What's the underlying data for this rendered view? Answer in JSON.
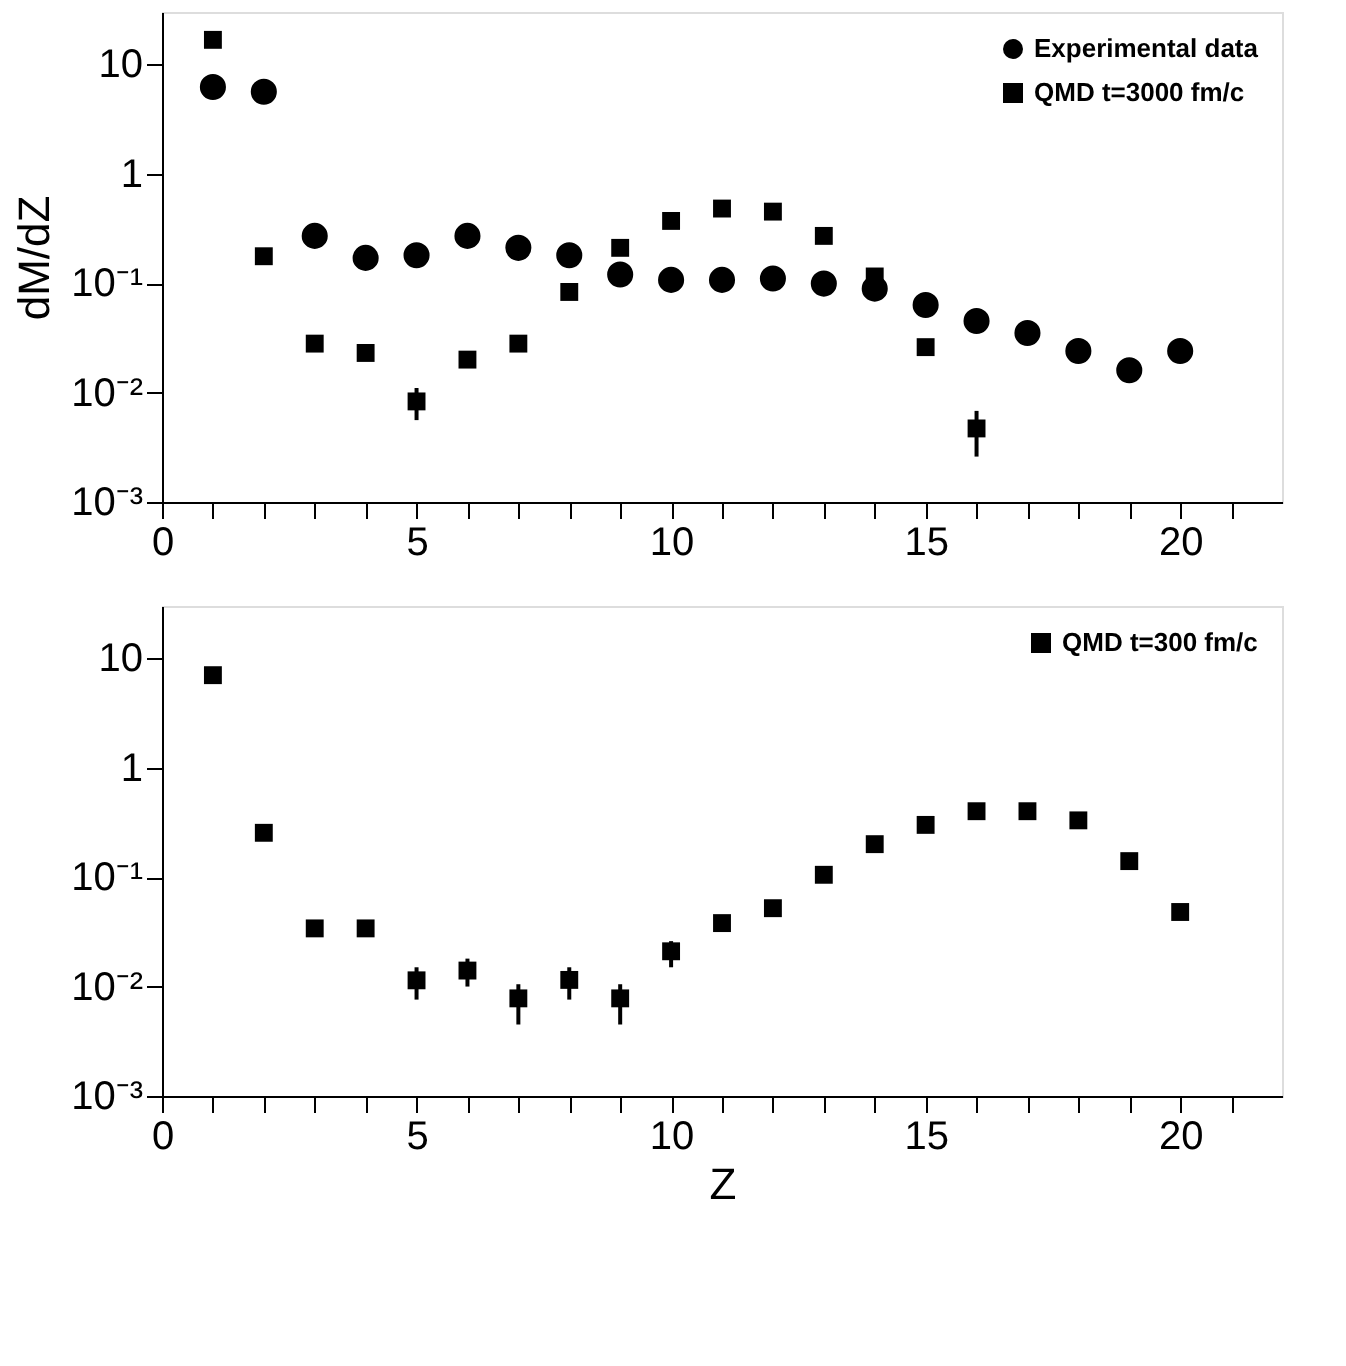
{
  "chart_data": [
    {
      "type": "scatter",
      "ylabel": "dM/dZ",
      "log": "y",
      "grid": false,
      "legend": "top right",
      "x": [
        1,
        2,
        3,
        4,
        5,
        6,
        7,
        8,
        9,
        10,
        11,
        12,
        13,
        14,
        15,
        16,
        17,
        18,
        19,
        20
      ],
      "xlim": [
        0,
        22
      ],
      "xticks": [
        0,
        {
          "value": 1,
          "label": null
        },
        {
          "value": 2,
          "label": null
        },
        {
          "value": 3,
          "label": null
        },
        {
          "value": 4,
          "label": null
        },
        5,
        {
          "value": 6,
          "label": null
        },
        {
          "value": 7,
          "label": null
        },
        {
          "value": 8,
          "label": null
        },
        {
          "value": 9,
          "label": null
        },
        10,
        {
          "value": 11,
          "label": null
        },
        {
          "value": 12,
          "label": null
        },
        {
          "value": 13,
          "label": null
        },
        {
          "value": 14,
          "label": null
        },
        15,
        {
          "value": 16,
          "label": null
        },
        {
          "value": 17,
          "label": null
        },
        {
          "value": 18,
          "label": null
        },
        {
          "value": 19,
          "label": null
        },
        20,
        {
          "value": 21,
          "label": null
        }
      ],
      "ylim": [
        0.001,
        30
      ],
      "yticks": [
        {
          "value": 0.001,
          "label": "10⁻³"
        },
        {
          "value": 0.01,
          "label": "10⁻²"
        },
        {
          "value": 0.1,
          "label": "10⁻¹"
        },
        1,
        10
      ],
      "series": [
        {
          "name": "Experimental data",
          "color": "#000000",
          "marker": "circle",
          "values": [
            6.2,
            5.6,
            0.27,
            0.17,
            0.18,
            0.27,
            0.21,
            0.18,
            0.12,
            0.107,
            0.107,
            0.11,
            0.099,
            0.089,
            0.063,
            0.045,
            0.035,
            0.024,
            0.016,
            0.024
          ]
        },
        {
          "name": "QMD t=3000 fm/c",
          "color": "#000000",
          "marker": "square",
          "values": [
            16.7,
            0.176,
            0.028,
            0.023,
            0.0083,
            0.02,
            0.028,
            0.083,
            0.21,
            0.37,
            0.48,
            0.45,
            0.27,
            0.115,
            0.026,
            0.0047,
            null,
            null,
            null,
            null
          ],
          "errors": [
            null,
            null,
            null,
            null,
            [
              0.0056,
              0.011
            ],
            null,
            null,
            null,
            null,
            null,
            null,
            null,
            null,
            null,
            null,
            [
              0.0026,
              0.0068
            ],
            null,
            null,
            null,
            null
          ]
        }
      ]
    },
    {
      "type": "scatter",
      "xlabel": "Z",
      "log": "y",
      "grid": false,
      "legend": "top right",
      "x": [
        1,
        2,
        3,
        4,
        5,
        6,
        7,
        8,
        9,
        10,
        11,
        12,
        13,
        14,
        15,
        16,
        17,
        18,
        19,
        20
      ],
      "xlim": [
        0,
        22
      ],
      "xticks": [
        0,
        {
          "value": 1,
          "label": null
        },
        {
          "value": 2,
          "label": null
        },
        {
          "value": 3,
          "label": null
        },
        {
          "value": 4,
          "label": null
        },
        5,
        {
          "value": 6,
          "label": null
        },
        {
          "value": 7,
          "label": null
        },
        {
          "value": 8,
          "label": null
        },
        {
          "value": 9,
          "label": null
        },
        10,
        {
          "value": 11,
          "label": null
        },
        {
          "value": 12,
          "label": null
        },
        {
          "value": 13,
          "label": null
        },
        {
          "value": 14,
          "label": null
        },
        15,
        {
          "value": 16,
          "label": null
        },
        {
          "value": 17,
          "label": null
        },
        {
          "value": 18,
          "label": null
        },
        {
          "value": 19,
          "label": null
        },
        20,
        {
          "value": 21,
          "label": null
        }
      ],
      "ylim": [
        0.001,
        30
      ],
      "yticks": [
        {
          "value": 0.001,
          "label": "10⁻³"
        },
        {
          "value": 0.01,
          "label": "10⁻²"
        },
        {
          "value": 0.1,
          "label": "10⁻¹"
        },
        1,
        10
      ],
      "series": [
        {
          "name": "QMD t=300 fm/c",
          "color": "#000000",
          "marker": "square",
          "values": [
            7.0,
            0.254,
            0.034,
            0.034,
            0.0114,
            0.014,
            0.0078,
            0.0115,
            0.0078,
            0.021,
            0.038,
            0.052,
            0.105,
            0.2,
            0.3,
            0.4,
            0.4,
            0.33,
            0.14,
            0.048
          ],
          "errors": [
            null,
            null,
            null,
            null,
            [
              0.0076,
              0.015
            ],
            [
              0.01,
              0.018
            ],
            [
              0.0045,
              0.0105
            ],
            [
              0.0076,
              0.015
            ],
            [
              0.0045,
              0.0105
            ],
            [
              0.015,
              0.026
            ],
            null,
            null,
            null,
            null,
            null,
            null,
            null,
            null,
            null,
            null
          ]
        }
      ]
    }
  ]
}
